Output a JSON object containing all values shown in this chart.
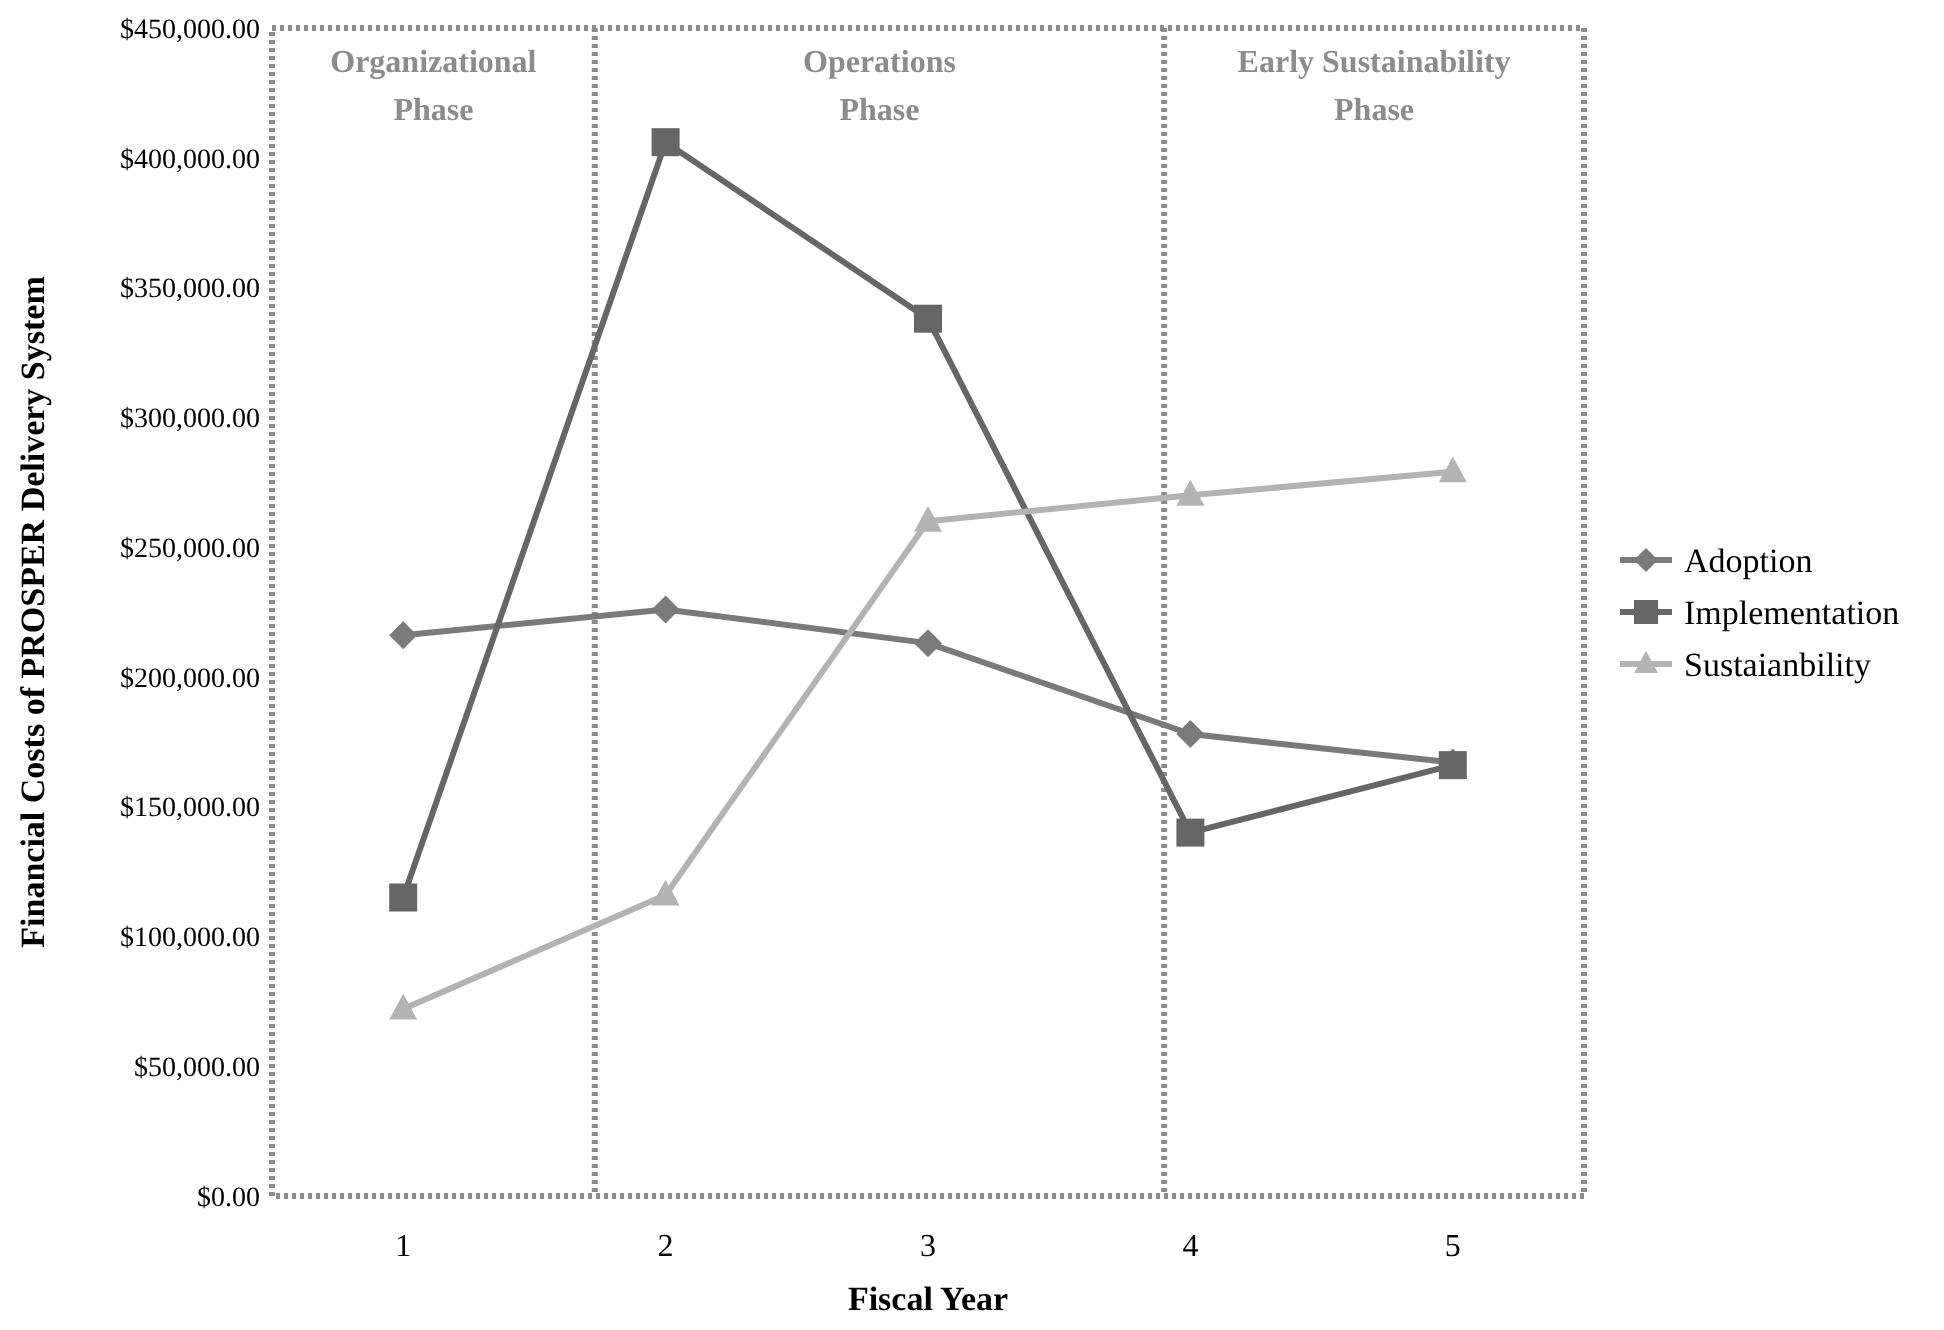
{
  "chart_data": {
    "type": "line",
    "xlabel": "Fiscal Year",
    "ylabel": "Financial Costs of PROSPER Delivery System",
    "x": [
      1,
      2,
      3,
      4,
      5
    ],
    "xlim": [
      0.5,
      5.5
    ],
    "xticks": [
      1,
      2,
      3,
      4,
      5
    ],
    "ylim": [
      0,
      450000
    ],
    "yticks": [
      {
        "value": 0,
        "label": "$0.00"
      },
      {
        "value": 50000,
        "label": "$50,000.00"
      },
      {
        "value": 100000,
        "label": "$100,000.00"
      },
      {
        "value": 150000,
        "label": "$150,000.00"
      },
      {
        "value": 200000,
        "label": "$200,000.00"
      },
      {
        "value": 250000,
        "label": "$250,000.00"
      },
      {
        "value": 300000,
        "label": "$300,000.00"
      },
      {
        "value": 350000,
        "label": "$350,000.00"
      },
      {
        "value": 400000,
        "label": "$400,000.00"
      },
      {
        "value": 450000,
        "label": "$450,000.00"
      }
    ],
    "series": [
      {
        "name": "Adoption",
        "color": "#7a7a7a",
        "marker": "diamond",
        "values": [
          216000,
          226000,
          213000,
          178000,
          167000
        ]
      },
      {
        "name": "Implementation",
        "color": "#666666",
        "marker": "square",
        "values": [
          115000,
          406000,
          338000,
          140000,
          166000
        ]
      },
      {
        "name": "Sustaianbility",
        "color": "#b3b3b3",
        "marker": "triangle",
        "values": [
          72000,
          116000,
          260000,
          270000,
          279000
        ]
      }
    ],
    "ref_lines": [
      {
        "axis": "x",
        "value": 1.73,
        "line_style": "dotted"
      },
      {
        "axis": "x",
        "value": 3.9,
        "line_style": "dotted"
      }
    ],
    "annotations": [
      "Organizational Phase",
      "Operations Phase",
      "Early Sustainability Phase"
    ],
    "grid": false,
    "legend": "right",
    "line_style": "solid"
  }
}
